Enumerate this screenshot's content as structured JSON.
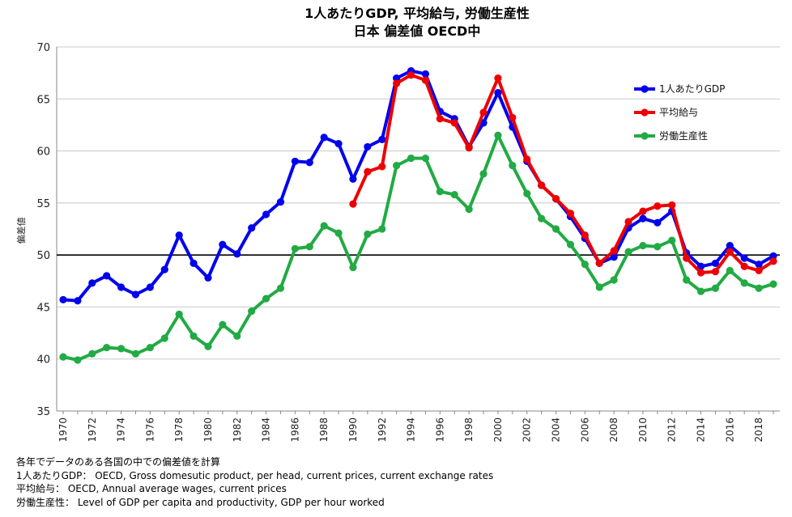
{
  "chart_data": {
    "type": "line",
    "title": "1人あたりGDP, 平均給与, 労働生産性",
    "subtitle": "日本 偏差値 OECD中",
    "ylabel": "偏差値",
    "xlabel": "",
    "ylim": [
      35,
      70
    ],
    "yticks": [
      35,
      40,
      45,
      50,
      55,
      60,
      65,
      70
    ],
    "xlim": [
      1970,
      2019
    ],
    "xticks": [
      1970,
      1972,
      1974,
      1976,
      1978,
      1980,
      1982,
      1984,
      1986,
      1988,
      1990,
      1992,
      1994,
      1996,
      1998,
      2000,
      2002,
      2004,
      2006,
      2008,
      2010,
      2012,
      2014,
      2016,
      2018
    ],
    "reference_line": 50,
    "grid": "horizontal",
    "legend_position": "top-right",
    "series": [
      {
        "name": "1人あたりGDP",
        "color": "#0000ee",
        "x": [
          1970,
          1971,
          1972,
          1973,
          1974,
          1975,
          1976,
          1977,
          1978,
          1979,
          1980,
          1981,
          1982,
          1983,
          1984,
          1985,
          1986,
          1987,
          1988,
          1989,
          1990,
          1991,
          1992,
          1993,
          1994,
          1995,
          1996,
          1997,
          1998,
          1999,
          2000,
          2001,
          2002,
          2003,
          2004,
          2005,
          2006,
          2007,
          2008,
          2009,
          2010,
          2011,
          2012,
          2013,
          2014,
          2015,
          2016,
          2017,
          2018,
          2019
        ],
        "values": [
          45.7,
          45.6,
          47.3,
          48.0,
          46.9,
          46.2,
          46.9,
          48.6,
          51.9,
          49.2,
          47.8,
          51.0,
          50.1,
          52.6,
          53.9,
          55.1,
          59.0,
          58.9,
          61.3,
          60.7,
          57.3,
          60.4,
          61.1,
          67.0,
          67.7,
          67.4,
          63.8,
          63.1,
          60.4,
          62.7,
          65.6,
          62.3,
          59.0,
          56.7,
          55.4,
          53.7,
          51.6,
          49.2,
          49.8,
          52.6,
          53.5,
          53.1,
          54.2,
          50.2,
          48.9,
          49.2,
          50.9,
          49.7,
          49.1,
          49.9
        ]
      },
      {
        "name": "平均給与",
        "color": "#ee0000",
        "x": [
          1990,
          1991,
          1992,
          1993,
          1994,
          1995,
          1996,
          1997,
          1998,
          1999,
          2000,
          2001,
          2002,
          2003,
          2004,
          2005,
          2006,
          2007,
          2008,
          2009,
          2010,
          2011,
          2012,
          2013,
          2014,
          2015,
          2016,
          2017,
          2018,
          2019
        ],
        "values": [
          54.9,
          58.0,
          58.5,
          66.5,
          67.3,
          66.8,
          63.1,
          62.7,
          60.3,
          63.7,
          67.0,
          63.2,
          59.2,
          56.7,
          55.4,
          54.0,
          51.9,
          49.2,
          50.4,
          53.2,
          54.2,
          54.7,
          54.8,
          49.7,
          48.3,
          48.4,
          50.3,
          48.9,
          48.5,
          49.4
        ]
      },
      {
        "name": "労働生産性",
        "color": "#22aa44",
        "x": [
          1970,
          1971,
          1972,
          1973,
          1974,
          1975,
          1976,
          1977,
          1978,
          1979,
          1980,
          1981,
          1982,
          1983,
          1984,
          1985,
          1986,
          1987,
          1988,
          1989,
          1990,
          1991,
          1992,
          1993,
          1994,
          1995,
          1996,
          1997,
          1998,
          1999,
          2000,
          2001,
          2002,
          2003,
          2004,
          2005,
          2006,
          2007,
          2008,
          2009,
          2010,
          2011,
          2012,
          2013,
          2014,
          2015,
          2016,
          2017,
          2018,
          2019
        ],
        "values": [
          40.2,
          39.9,
          40.5,
          41.1,
          41.0,
          40.5,
          41.1,
          42.0,
          44.3,
          42.2,
          41.2,
          43.3,
          42.2,
          44.6,
          45.8,
          46.8,
          50.6,
          50.8,
          52.8,
          52.1,
          48.8,
          52.0,
          52.5,
          58.6,
          59.3,
          59.3,
          56.1,
          55.8,
          54.4,
          57.8,
          61.5,
          58.6,
          55.9,
          53.5,
          52.5,
          51.0,
          49.1,
          46.9,
          47.6,
          50.3,
          50.9,
          50.8,
          51.4,
          47.6,
          46.5,
          46.8,
          48.5,
          47.3,
          46.8,
          47.2
        ]
      }
    ]
  },
  "notes": [
    "各年でデータのある各国の中での偏差値を計算",
    "1人あたりGDP： OECD, Gross domesutic product, per head, current prices, current exchange rates",
    "平均給与： OECD, Annual average wages, current prices",
    "労働生産性： Level of GDP per capita and productivity, GDP per hour worked"
  ]
}
